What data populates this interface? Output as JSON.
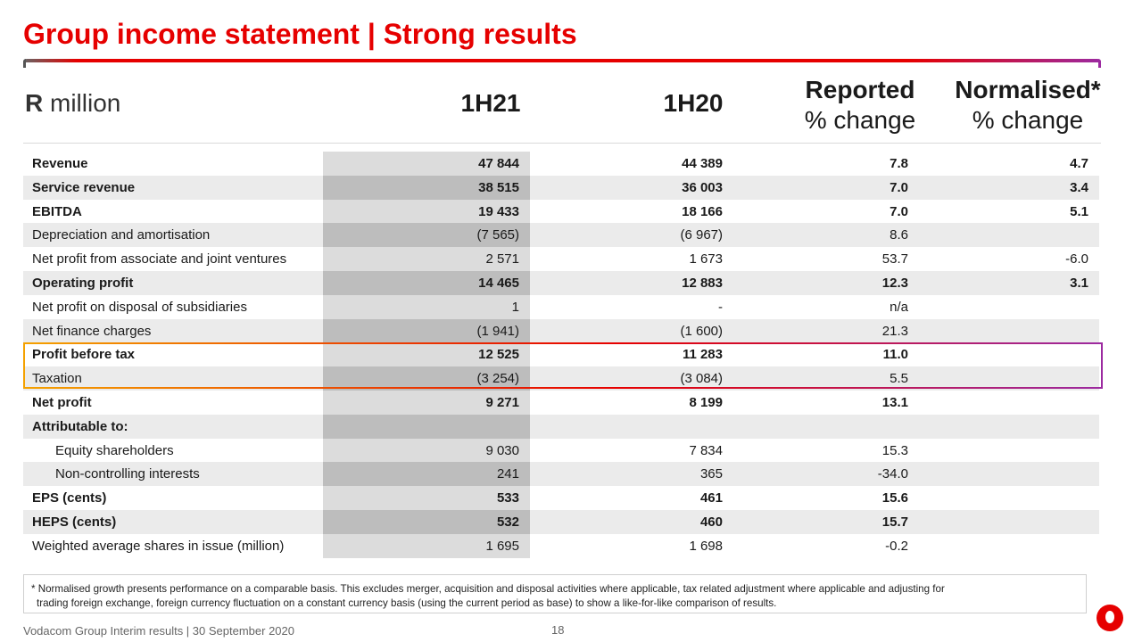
{
  "slide": {
    "title": "Group income statement | Strong results",
    "page_number": "18",
    "footer": "Vodacom Group Interim results | 30 September 2020",
    "accent_color": "#e60000",
    "secondary_color": "#9c2aa0",
    "logo_icon": "vodafone-logo-icon"
  },
  "header": {
    "unit_bold": "R",
    "unit_rest": " million",
    "col1": "1H21",
    "col2": "1H20",
    "col3_top": "Reported",
    "col3_bottom": "% change",
    "col4_top": "Normalised*",
    "col4_bottom": "% change"
  },
  "rows": [
    {
      "label": "Revenue",
      "h21": "47 844",
      "h20": "44 389",
      "reported": "7.8",
      "normalised": "4.7",
      "bold": true
    },
    {
      "label": "Service revenue",
      "h21": "38 515",
      "h20": "36 003",
      "reported": "7.0",
      "normalised": "3.4",
      "bold": true
    },
    {
      "label": "EBITDA",
      "h21": "19 433",
      "h20": "18 166",
      "reported": "7.0",
      "normalised": "5.1",
      "bold": true
    },
    {
      "label": "Depreciation and amortisation",
      "h21": "(7 565)",
      "h20": "(6 967)",
      "reported": "8.6",
      "normalised": "",
      "bold": false
    },
    {
      "label": "Net profit from associate and joint ventures",
      "h21": "2 571",
      "h20": "1 673",
      "reported": "53.7",
      "normalised": "-6.0",
      "bold": false
    },
    {
      "label": "Operating profit",
      "h21": "14 465",
      "h20": "12 883",
      "reported": "12.3",
      "normalised": "3.1",
      "bold": true
    },
    {
      "label": "Net profit on disposal of subsidiaries",
      "h21": "1",
      "h20": "-",
      "reported": "n/a",
      "normalised": "",
      "bold": false
    },
    {
      "label": "Net finance charges",
      "h21": "(1 941)",
      "h20": "(1 600)",
      "reported": "21.3",
      "normalised": "",
      "bold": false
    },
    {
      "label": "Profit before tax",
      "h21": "12 525",
      "h20": "11 283",
      "reported": "11.0",
      "normalised": "",
      "bold": true
    },
    {
      "label": "Taxation",
      "h21": "(3 254)",
      "h20": "(3 084)",
      "reported": "5.5",
      "normalised": "",
      "bold": false
    },
    {
      "label": "Net profit",
      "h21": "9 271",
      "h20": "8 199",
      "reported": "13.1",
      "normalised": "",
      "bold": true
    },
    {
      "label": "Attributable to:",
      "h21": "",
      "h20": "",
      "reported": "",
      "normalised": "",
      "bold": true
    },
    {
      "label": "Equity shareholders",
      "h21": "9 030",
      "h20": "7 834",
      "reported": "15.3",
      "normalised": "",
      "bold": false,
      "indent": true
    },
    {
      "label": "Non-controlling interests",
      "h21": "241",
      "h20": "365",
      "reported": "-34.0",
      "normalised": "",
      "bold": false,
      "indent": true
    },
    {
      "label": "EPS (cents)",
      "h21": "533",
      "h20": "461",
      "reported": "15.6",
      "normalised": "",
      "bold": true
    },
    {
      "label": "HEPS (cents)",
      "h21": "532",
      "h20": "460",
      "reported": "15.7",
      "normalised": "",
      "bold": true
    },
    {
      "label": "Weighted average shares in issue (million)",
      "h21": "1 695",
      "h20": "1 698",
      "reported": "-0.2",
      "normalised": "",
      "bold": false
    }
  ],
  "footnote": {
    "line1": "* Normalised growth presents performance on a comparable basis. This excludes merger, acquisition and disposal activities where applicable, tax related adjustment where applicable and adjusting for",
    "line2": "trading foreign exchange, foreign currency fluctuation on a constant currency basis (using the current period as base) to show a like-for-like comparison of results."
  }
}
